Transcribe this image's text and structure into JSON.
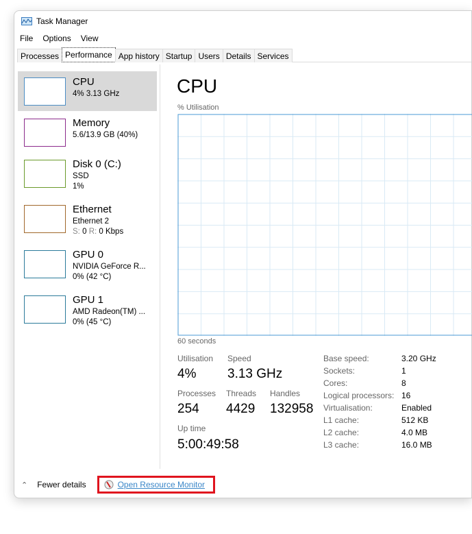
{
  "window": {
    "title": "Task Manager"
  },
  "menu": [
    "File",
    "Options",
    "View"
  ],
  "tabs": [
    "Processes",
    "Performance",
    "App history",
    "Startup",
    "Users",
    "Details",
    "Services"
  ],
  "active_tab": "Performance",
  "sidebar": [
    {
      "name": "CPU",
      "line1": "4% 3.13 GHz",
      "line2": "",
      "color": "#4a8cc4",
      "selected": true
    },
    {
      "name": "Memory",
      "line1": "5.6/13.9 GB (40%)",
      "line2": "",
      "color": "#8b2a8b"
    },
    {
      "name": "Disk 0 (C:)",
      "line1": "SSD",
      "line2": "1%",
      "color": "#6a9a2a"
    },
    {
      "name": "Ethernet",
      "line1": "Ethernet 2",
      "line2": "",
      "color": "#a0672a"
    },
    {
      "name": "GPU 0",
      "line1": "NVIDIA GeForce R...",
      "line2": "0%  (42 °C)",
      "color": "#2a7a9a"
    },
    {
      "name": "GPU 1",
      "line1": "AMD Radeon(TM) ...",
      "line2": "0%  (45 °C)",
      "color": "#2a7a9a"
    }
  ],
  "ethernet_rate": {
    "s_label": "S:",
    "s": "0",
    "r_label": "R:",
    "r": "0 Kbps"
  },
  "main": {
    "title": "CPU",
    "graph_label": "% Utilisation",
    "graph_time": "60 seconds",
    "graph_color": "#4a9ad4",
    "stats": {
      "utilisation_label": "Utilisation",
      "utilisation": "4%",
      "speed_label": "Speed",
      "speed": "3.13 GHz",
      "processes_label": "Processes",
      "processes": "254",
      "threads_label": "Threads",
      "threads": "4429",
      "handles_label": "Handles",
      "handles": "132958",
      "uptime_label": "Up time",
      "uptime": "5:00:49:58"
    },
    "specs": [
      [
        "Base speed:",
        "3.20 GHz"
      ],
      [
        "Sockets:",
        "1"
      ],
      [
        "Cores:",
        "8"
      ],
      [
        "Logical processors:",
        "16"
      ],
      [
        "Virtualisation:",
        "Enabled"
      ],
      [
        "L1 cache:",
        "512 KB"
      ],
      [
        "L2 cache:",
        "4.0 MB"
      ],
      [
        "L3 cache:",
        "16.0 MB"
      ]
    ]
  },
  "footer": {
    "fewer_details": "Fewer details",
    "resource_monitor": "Open Resource Monitor",
    "highlight_color": "#e0141e"
  }
}
